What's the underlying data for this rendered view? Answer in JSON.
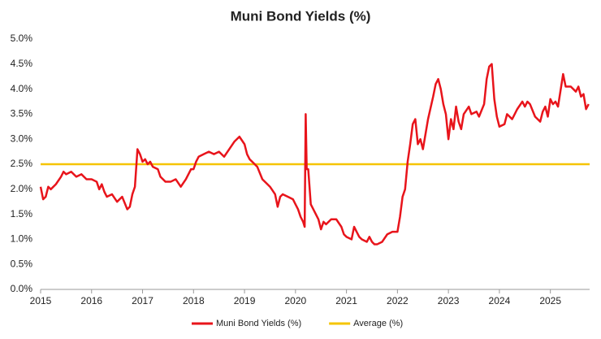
{
  "chart_data": {
    "type": "line",
    "title": "Muni Bond Yields (%)",
    "x": [
      2015.0,
      2015.05,
      2015.1,
      2015.15,
      2015.2,
      2015.3,
      2015.4,
      2015.45,
      2015.5,
      2015.6,
      2015.7,
      2015.8,
      2015.9,
      2016.0,
      2016.1,
      2016.15,
      2016.2,
      2016.25,
      2016.3,
      2016.4,
      2016.5,
      2016.6,
      2016.7,
      2016.75,
      2016.8,
      2016.85,
      2016.9,
      2016.95,
      2017.0,
      2017.05,
      2017.1,
      2017.15,
      2017.2,
      2017.3,
      2017.35,
      2017.45,
      2017.55,
      2017.65,
      2017.75,
      2017.85,
      2017.95,
      2018.0,
      2018.05,
      2018.1,
      2018.2,
      2018.3,
      2018.4,
      2018.5,
      2018.6,
      2018.7,
      2018.8,
      2018.9,
      2019.0,
      2019.05,
      2019.1,
      2019.15,
      2019.25,
      2019.35,
      2019.45,
      2019.5,
      2019.6,
      2019.65,
      2019.7,
      2019.75,
      2019.85,
      2019.95,
      2020.0,
      2020.05,
      2020.1,
      2020.15,
      2020.18,
      2020.2,
      2020.22,
      2020.25,
      2020.3,
      2020.35,
      2020.45,
      2020.5,
      2020.55,
      2020.6,
      2020.7,
      2020.8,
      2020.9,
      2020.95,
      2021.0,
      2021.1,
      2021.15,
      2021.2,
      2021.25,
      2021.3,
      2021.4,
      2021.45,
      2021.5,
      2021.55,
      2021.6,
      2021.7,
      2021.8,
      2021.9,
      2022.0,
      2022.05,
      2022.1,
      2022.15,
      2022.2,
      2022.25,
      2022.3,
      2022.35,
      2022.4,
      2022.45,
      2022.5,
      2022.6,
      2022.7,
      2022.75,
      2022.8,
      2022.85,
      2022.9,
      2022.95,
      2023.0,
      2023.05,
      2023.1,
      2023.15,
      2023.2,
      2023.25,
      2023.3,
      2023.4,
      2023.45,
      2023.55,
      2023.6,
      2023.7,
      2023.75,
      2023.8,
      2023.85,
      2023.9,
      2023.95,
      2024.0,
      2024.1,
      2024.15,
      2024.25,
      2024.3,
      2024.35,
      2024.45,
      2024.5,
      2024.55,
      2024.6,
      2024.7,
      2024.8,
      2024.85,
      2024.9,
      2024.95,
      2025.0,
      2025.05,
      2025.1,
      2025.15,
      2025.25,
      2025.3,
      2025.4,
      2025.5,
      2025.55,
      2025.6,
      2025.65,
      2025.7,
      2025.75
    ],
    "series": [
      {
        "name": "Muni Bond Yields (%)",
        "color": "#e8141b",
        "values": [
          2.05,
          1.8,
          1.85,
          2.05,
          2.0,
          2.1,
          2.25,
          2.35,
          2.3,
          2.35,
          2.25,
          2.3,
          2.2,
          2.2,
          2.15,
          2.0,
          2.1,
          1.95,
          1.85,
          1.9,
          1.75,
          1.85,
          1.6,
          1.65,
          1.9,
          2.05,
          2.8,
          2.7,
          2.55,
          2.6,
          2.5,
          2.55,
          2.45,
          2.4,
          2.25,
          2.15,
          2.15,
          2.2,
          2.05,
          2.2,
          2.4,
          2.4,
          2.55,
          2.65,
          2.7,
          2.75,
          2.7,
          2.75,
          2.65,
          2.8,
          2.95,
          3.05,
          2.9,
          2.7,
          2.6,
          2.55,
          2.45,
          2.2,
          2.1,
          2.05,
          1.9,
          1.65,
          1.85,
          1.9,
          1.85,
          1.8,
          1.7,
          1.6,
          1.45,
          1.35,
          1.25,
          3.5,
          2.4,
          2.4,
          1.7,
          1.6,
          1.4,
          1.2,
          1.35,
          1.3,
          1.4,
          1.4,
          1.25,
          1.1,
          1.05,
          1.0,
          1.25,
          1.15,
          1.05,
          1.0,
          0.95,
          1.05,
          0.95,
          0.9,
          0.9,
          0.95,
          1.1,
          1.15,
          1.15,
          1.45,
          1.85,
          2.0,
          2.55,
          2.9,
          3.3,
          3.4,
          2.9,
          3.0,
          2.8,
          3.4,
          3.85,
          4.1,
          4.2,
          4.0,
          3.7,
          3.5,
          3.0,
          3.4,
          3.2,
          3.65,
          3.35,
          3.2,
          3.5,
          3.65,
          3.5,
          3.55,
          3.45,
          3.7,
          4.2,
          4.45,
          4.5,
          3.8,
          3.45,
          3.25,
          3.3,
          3.5,
          3.4,
          3.5,
          3.6,
          3.75,
          3.65,
          3.75,
          3.7,
          3.45,
          3.35,
          3.55,
          3.65,
          3.45,
          3.8,
          3.7,
          3.75,
          3.65,
          4.3,
          4.05,
          4.05,
          3.95,
          4.05,
          3.85,
          3.9,
          3.6,
          3.7
        ]
      }
    ],
    "average": {
      "name": "Average (%)",
      "color": "#f5c400",
      "value": 2.5
    },
    "xlim": [
      2015,
      2025.77
    ],
    "xticks": [
      2015,
      2016,
      2017,
      2018,
      2019,
      2020,
      2021,
      2022,
      2023,
      2024,
      2025
    ],
    "ylim": [
      0,
      5
    ],
    "yticks": [
      {
        "value": 0,
        "label": "0.0%"
      },
      {
        "value": 0.5,
        "label": "0.5%"
      },
      {
        "value": 1,
        "label": "1.0%"
      },
      {
        "value": 1.5,
        "label": "1.5%"
      },
      {
        "value": 2,
        "label": "2.0%"
      },
      {
        "value": 2.5,
        "label": "2.5%"
      },
      {
        "value": 3,
        "label": "3.0%"
      },
      {
        "value": 3.5,
        "label": "3.5%"
      },
      {
        "value": 4,
        "label": "4.0%"
      },
      {
        "value": 4.5,
        "label": "4.5%"
      },
      {
        "value": 5,
        "label": "5.0%"
      }
    ],
    "grid": false,
    "legend": "bottom"
  }
}
